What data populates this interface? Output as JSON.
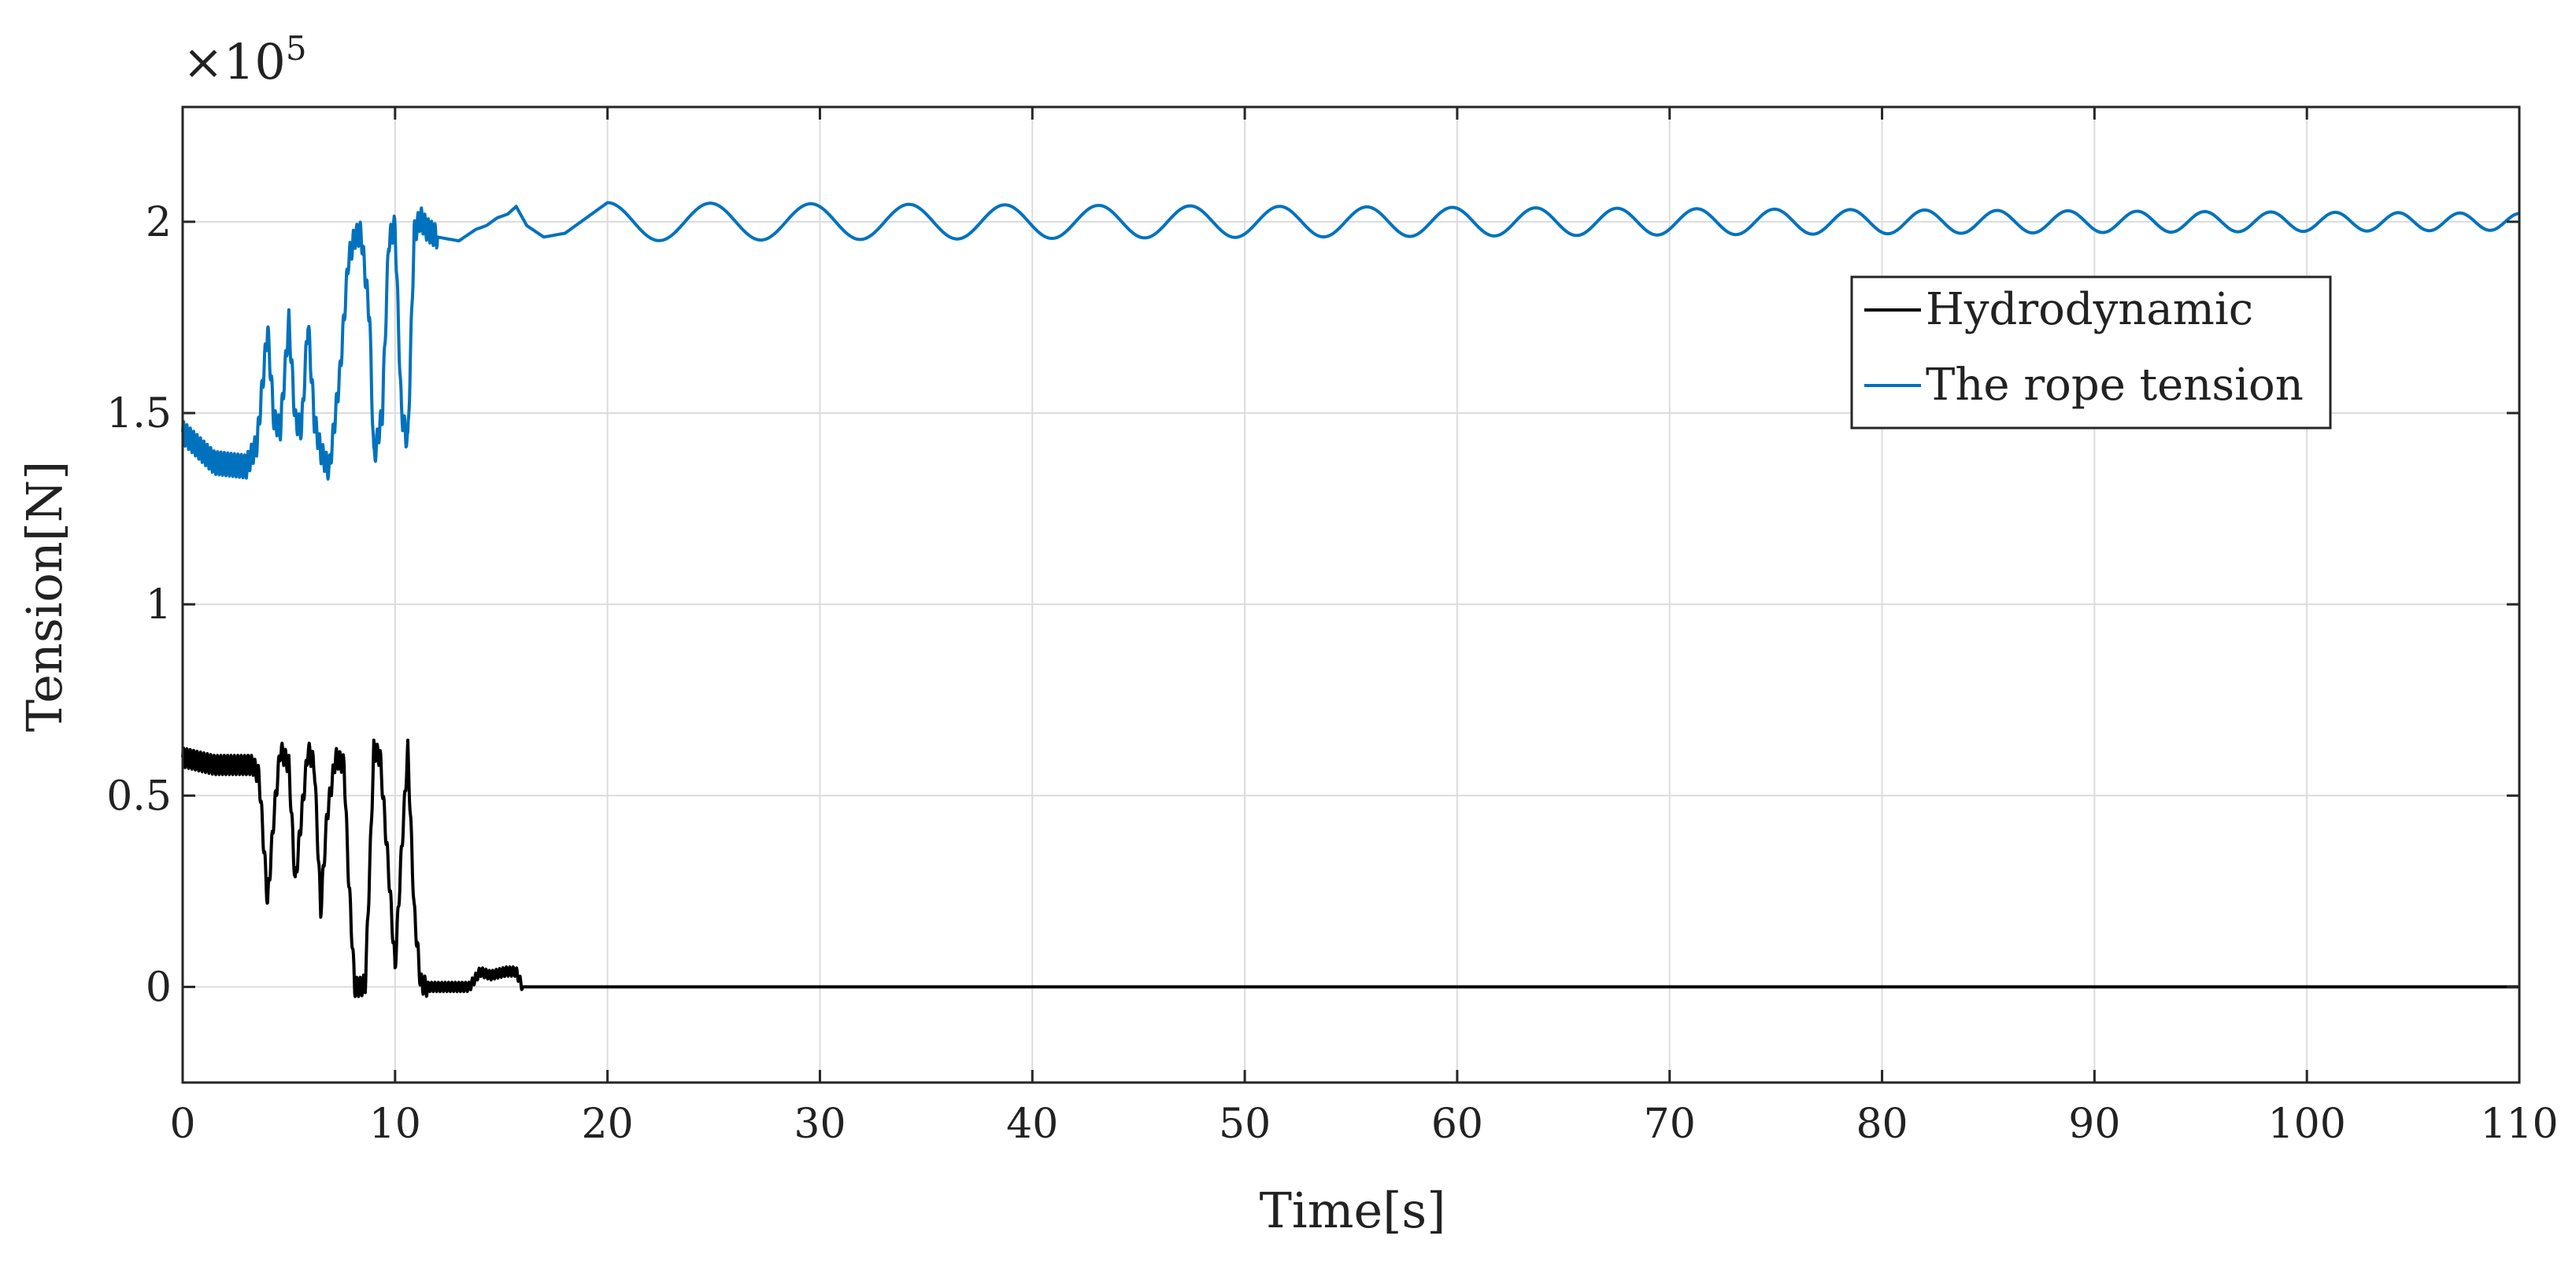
{
  "chart_data": {
    "type": "line",
    "title": "",
    "xlabel": "Time[s]",
    "ylabel": "Tension[N]",
    "y_scale_label": "×10",
    "y_scale_exponent": "5",
    "xlim": [
      0,
      110
    ],
    "ylim": [
      -0.25,
      2.3
    ],
    "x_ticks": [
      0,
      10,
      20,
      30,
      40,
      50,
      60,
      70,
      80,
      90,
      100,
      110
    ],
    "y_ticks": [
      0,
      0.5,
      1,
      1.5,
      2
    ],
    "x_tick_labels": [
      "0",
      "10",
      "20",
      "30",
      "40",
      "50",
      "60",
      "70",
      "80",
      "90",
      "100",
      "110"
    ],
    "y_tick_labels": [
      "0",
      "0.5",
      "1",
      "1.5",
      "2"
    ],
    "grid": true,
    "legend_position": "upper-right",
    "series": [
      {
        "name": "Hydrodynamic",
        "color": "#000000",
        "x": [
          0,
          1.5,
          3.3,
          3.6,
          4.0,
          4.3,
          4.6,
          5.0,
          5.3,
          5.6,
          5.9,
          6.2,
          6.5,
          6.8,
          7.2,
          7.6,
          7.8,
          8.1,
          8.4,
          8.6,
          8.8,
          9.0,
          9.3,
          9.7,
          10.0,
          10.3,
          10.6,
          10.9,
          11.2,
          11.5,
          12.0,
          13.5,
          14.0,
          14.5,
          15.2,
          15.7,
          16.0,
          110
        ],
        "values": [
          0.6,
          0.58,
          0.58,
          0.55,
          0.22,
          0.45,
          0.62,
          0.58,
          0.27,
          0.45,
          0.62,
          0.58,
          0.2,
          0.45,
          0.6,
          0.58,
          0.3,
          0.0,
          0.0,
          0.01,
          0.3,
          0.62,
          0.6,
          0.3,
          0.05,
          0.35,
          0.62,
          0.2,
          0.01,
          0.0,
          0.0,
          0.0,
          0.04,
          0.03,
          0.04,
          0.04,
          0.0,
          0.0
        ]
      },
      {
        "name": "The rope tension",
        "color": "#0072BD",
        "x": [
          0,
          1.5,
          3.0,
          3.5,
          4.0,
          4.3,
          4.6,
          5.0,
          5.3,
          5.6,
          5.9,
          6.2,
          6.5,
          6.9,
          7.4,
          7.8,
          8.1,
          8.4,
          8.8,
          9.0,
          9.4,
          9.7,
          10.0,
          10.3,
          10.6,
          10.9,
          11.2,
          11.5,
          12.0,
          13.0,
          13.8,
          14.3,
          14.8,
          15.3,
          15.7,
          16.2,
          17.0,
          18.0,
          19.0,
          20.0
        ],
        "values": [
          1.45,
          1.37,
          1.36,
          1.42,
          1.72,
          1.48,
          1.46,
          1.74,
          1.48,
          1.46,
          1.74,
          1.48,
          1.4,
          1.35,
          1.6,
          1.9,
          1.96,
          1.97,
          1.75,
          1.38,
          1.5,
          1.95,
          1.99,
          1.5,
          1.42,
          1.97,
          2.01,
          1.98,
          1.96,
          1.95,
          1.98,
          1.99,
          2.01,
          2.02,
          2.04,
          1.99,
          1.96,
          1.97,
          2.01,
          2.05
        ],
        "steady_oscillation": {
          "x_start": 20,
          "x_end": 110,
          "mean": 2.0,
          "amplitude_start": 0.05,
          "amplitude_end": 0.022,
          "period_start": 4.9,
          "period_end": 2.8
        }
      }
    ]
  }
}
